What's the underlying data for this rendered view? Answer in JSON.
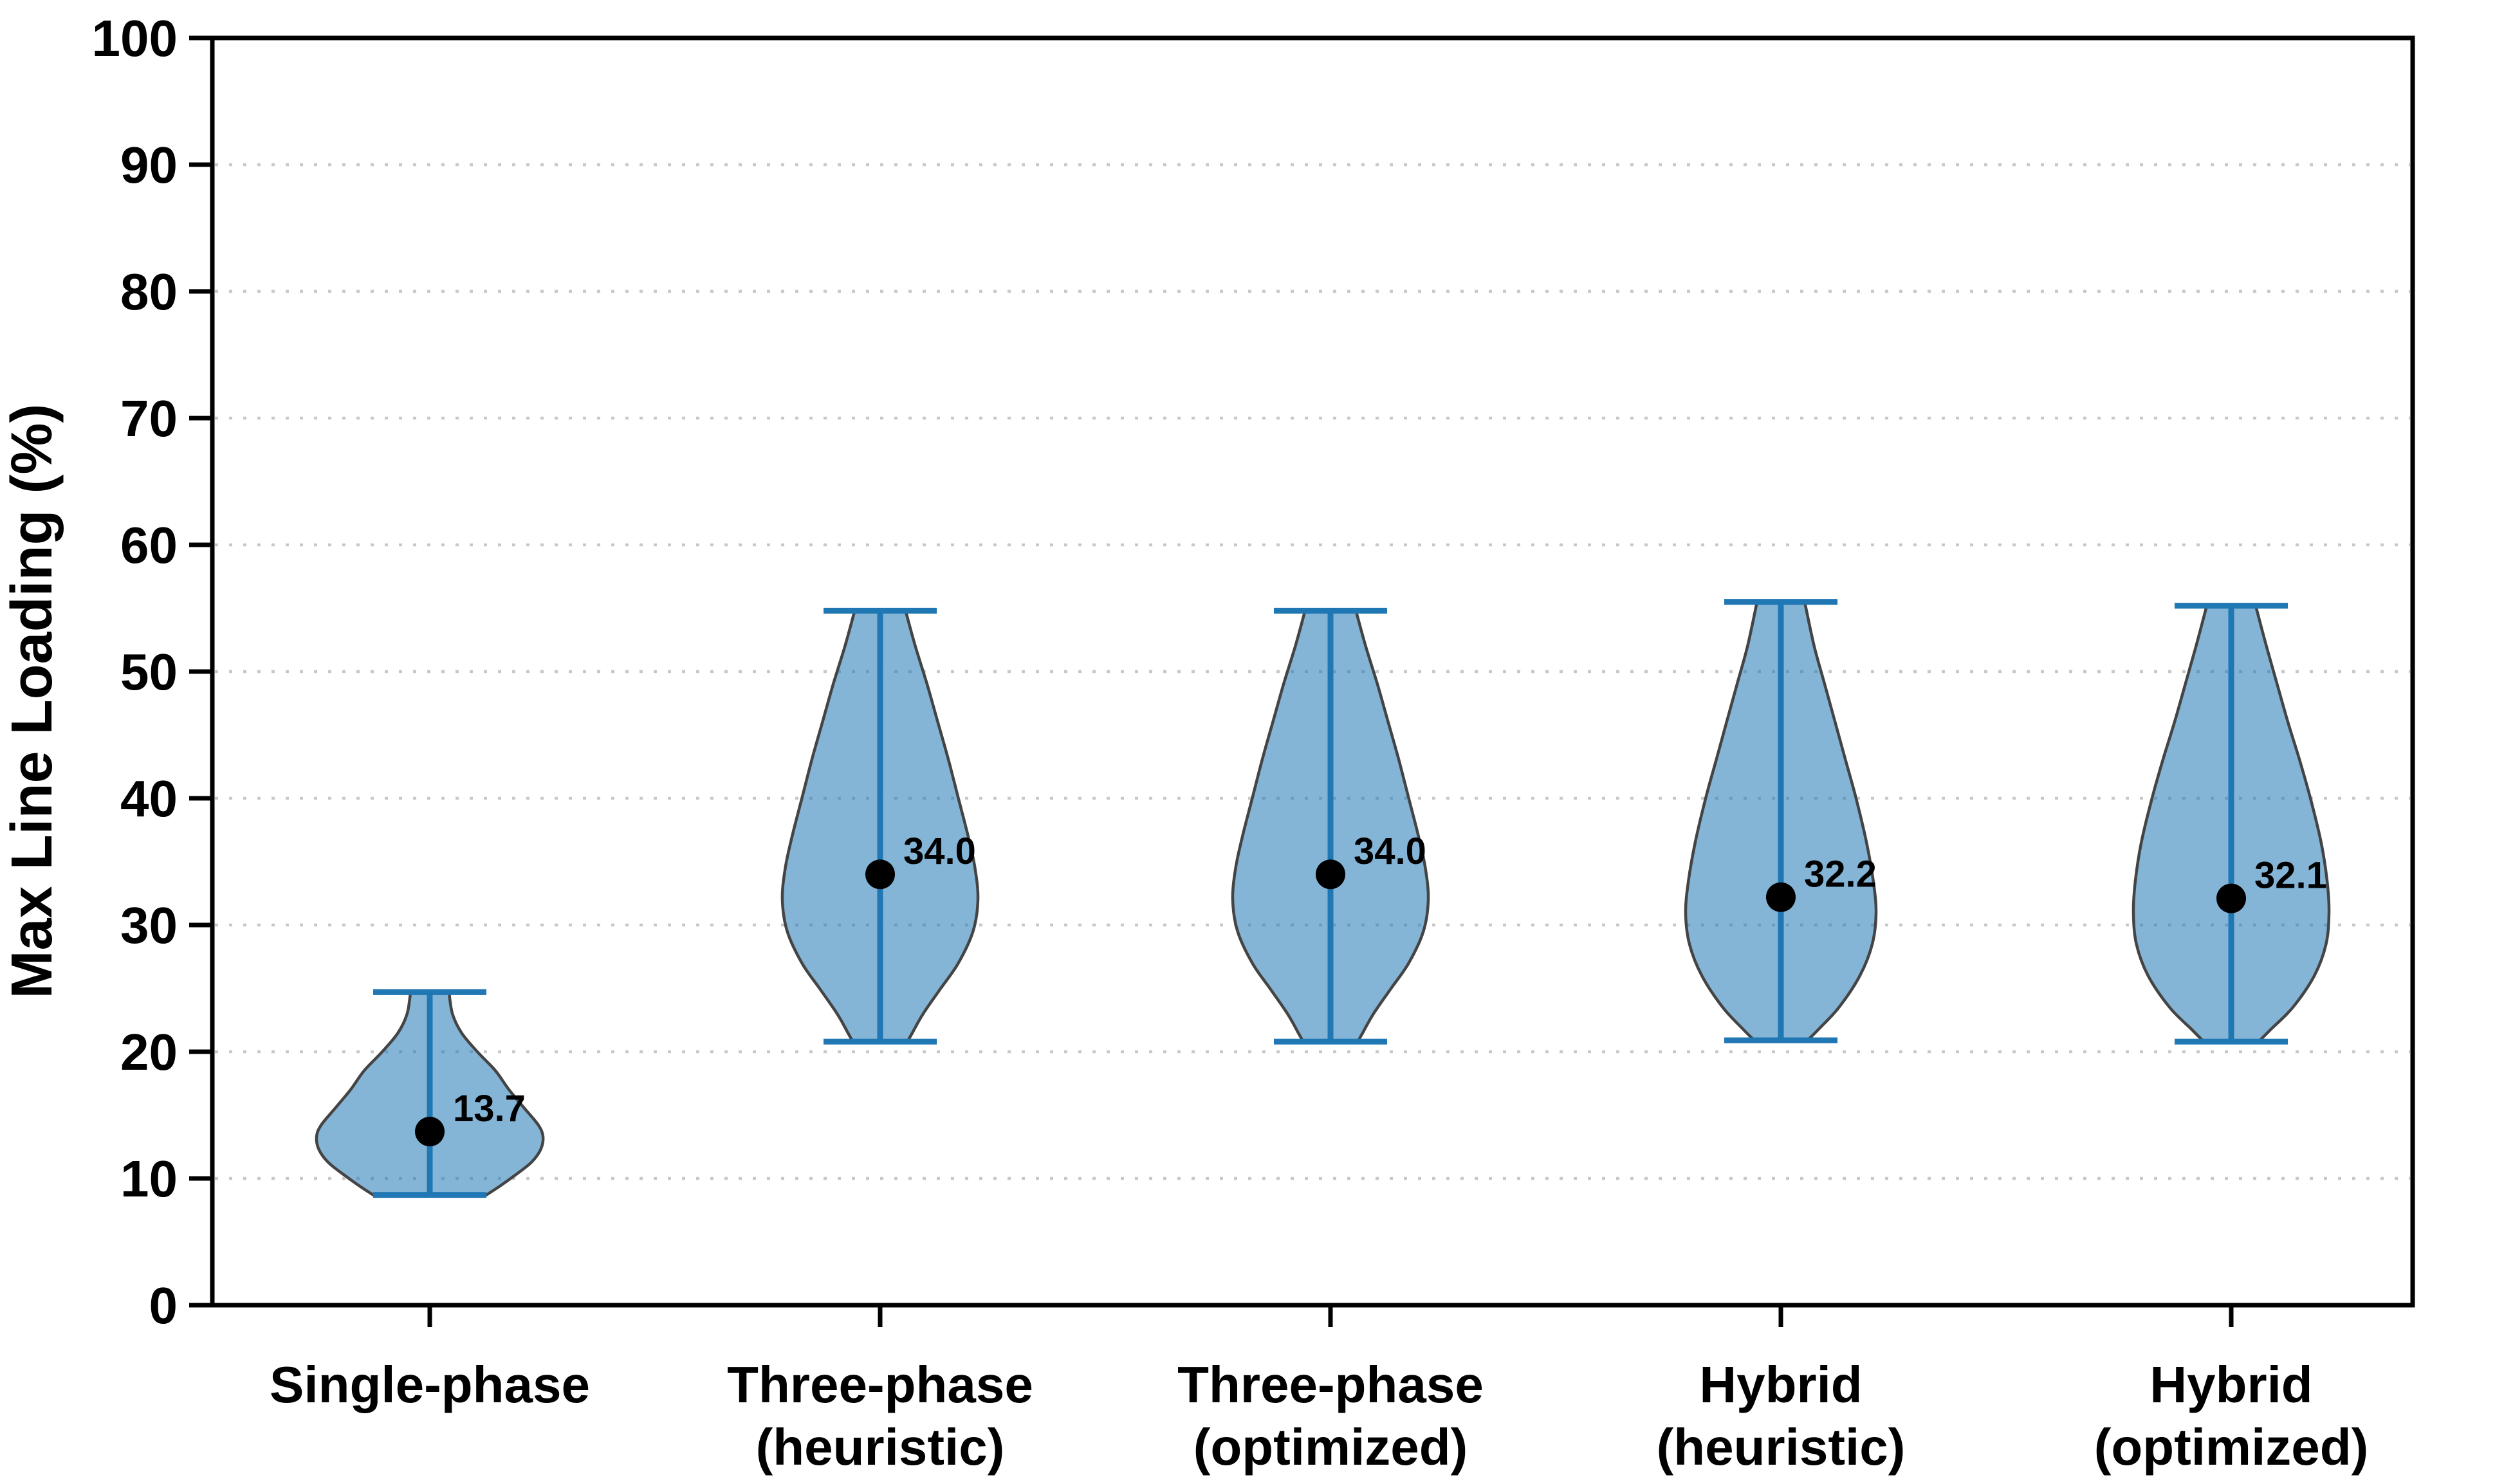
{
  "chart_data": {
    "type": "violin",
    "title": "",
    "xlabel": "",
    "ylabel": "Max Line Loading (%)",
    "ylim": [
      0,
      100
    ],
    "yticks": [
      0,
      10,
      20,
      30,
      40,
      50,
      60,
      70,
      80,
      90,
      100
    ],
    "grid": {
      "axis": "y",
      "style": "dotted",
      "lines_at": [
        10,
        20,
        30,
        40,
        50,
        60,
        70,
        80,
        90
      ]
    },
    "legend": null,
    "categories": [
      {
        "lines": [
          "Single-phase"
        ]
      },
      {
        "lines": [
          "Three-phase",
          "(heuristic)"
        ]
      },
      {
        "lines": [
          "Three-phase",
          "(optimized)"
        ]
      },
      {
        "lines": [
          "Hybrid",
          "(heuristic)"
        ]
      },
      {
        "lines": [
          "Hybrid",
          "(optimized)"
        ]
      }
    ],
    "violins": [
      {
        "category": "Single-phase",
        "median": 13.7,
        "median_label": "13.7",
        "whisker_min": 8.7,
        "whisker_max": 24.7,
        "density_profile": [
          [
            24.7,
            0.17
          ],
          [
            23.0,
            0.2
          ],
          [
            21.5,
            0.28
          ],
          [
            20.0,
            0.42
          ],
          [
            18.5,
            0.58
          ],
          [
            17.0,
            0.7
          ],
          [
            15.5,
            0.84
          ],
          [
            14.2,
            0.96
          ],
          [
            13.3,
            1.0
          ],
          [
            12.3,
            0.98
          ],
          [
            11.3,
            0.9
          ],
          [
            10.3,
            0.76
          ],
          [
            9.4,
            0.62
          ],
          [
            8.7,
            0.5
          ]
        ]
      },
      {
        "category": "Three-phase (heuristic)",
        "median": 34.0,
        "median_label": "34.0",
        "whisker_min": 20.8,
        "whisker_max": 54.8,
        "density_profile": [
          [
            54.8,
            0.26
          ],
          [
            52.0,
            0.36
          ],
          [
            49.0,
            0.48
          ],
          [
            46.0,
            0.59
          ],
          [
            43.0,
            0.7
          ],
          [
            40.0,
            0.8
          ],
          [
            37.0,
            0.9
          ],
          [
            34.5,
            0.97
          ],
          [
            32.0,
            1.0
          ],
          [
            29.5,
            0.95
          ],
          [
            27.0,
            0.8
          ],
          [
            25.0,
            0.62
          ],
          [
            23.0,
            0.44
          ],
          [
            21.5,
            0.33
          ],
          [
            20.8,
            0.28
          ]
        ]
      },
      {
        "category": "Three-phase (optimized)",
        "median": 34.0,
        "median_label": "34.0",
        "whisker_min": 20.8,
        "whisker_max": 54.8,
        "density_profile": [
          [
            54.8,
            0.26
          ],
          [
            52.0,
            0.36
          ],
          [
            49.0,
            0.48
          ],
          [
            46.0,
            0.59
          ],
          [
            43.0,
            0.7
          ],
          [
            40.0,
            0.8
          ],
          [
            37.0,
            0.9
          ],
          [
            34.5,
            0.97
          ],
          [
            32.0,
            1.0
          ],
          [
            29.5,
            0.95
          ],
          [
            27.0,
            0.8
          ],
          [
            25.0,
            0.62
          ],
          [
            23.0,
            0.44
          ],
          [
            21.5,
            0.33
          ],
          [
            20.8,
            0.28
          ]
        ]
      },
      {
        "category": "Hybrid (heuristic)",
        "median": 32.2,
        "median_label": "32.2",
        "whisker_min": 20.9,
        "whisker_max": 55.5,
        "density_profile": [
          [
            55.5,
            0.25
          ],
          [
            52.0,
            0.35
          ],
          [
            49.0,
            0.46
          ],
          [
            46.0,
            0.57
          ],
          [
            43.0,
            0.68
          ],
          [
            40.0,
            0.79
          ],
          [
            36.5,
            0.9
          ],
          [
            33.5,
            0.97
          ],
          [
            31.0,
            1.0
          ],
          [
            28.5,
            0.96
          ],
          [
            26.0,
            0.83
          ],
          [
            23.5,
            0.61
          ],
          [
            21.8,
            0.4
          ],
          [
            20.9,
            0.28
          ]
        ]
      },
      {
        "category": "Hybrid (optimized)",
        "median": 32.1,
        "median_label": "32.1",
        "whisker_min": 20.8,
        "whisker_max": 55.2,
        "density_profile": [
          [
            55.2,
            0.25
          ],
          [
            52.0,
            0.36
          ],
          [
            49.0,
            0.47
          ],
          [
            46.0,
            0.58
          ],
          [
            43.0,
            0.7
          ],
          [
            40.0,
            0.81
          ],
          [
            36.5,
            0.92
          ],
          [
            33.5,
            0.98
          ],
          [
            31.0,
            1.0
          ],
          [
            28.5,
            0.97
          ],
          [
            26.0,
            0.85
          ],
          [
            23.5,
            0.63
          ],
          [
            21.8,
            0.41
          ],
          [
            20.8,
            0.28
          ]
        ]
      }
    ],
    "colors": {
      "violin_fill": "#1f77b4",
      "violin_fill_opacity": "0.55",
      "violin_edge": "#444444",
      "whisker": "#1f77b4",
      "median_dot": "#000000",
      "grid": "#c8c8c8",
      "axis": "#000000",
      "text": "#000000"
    }
  }
}
